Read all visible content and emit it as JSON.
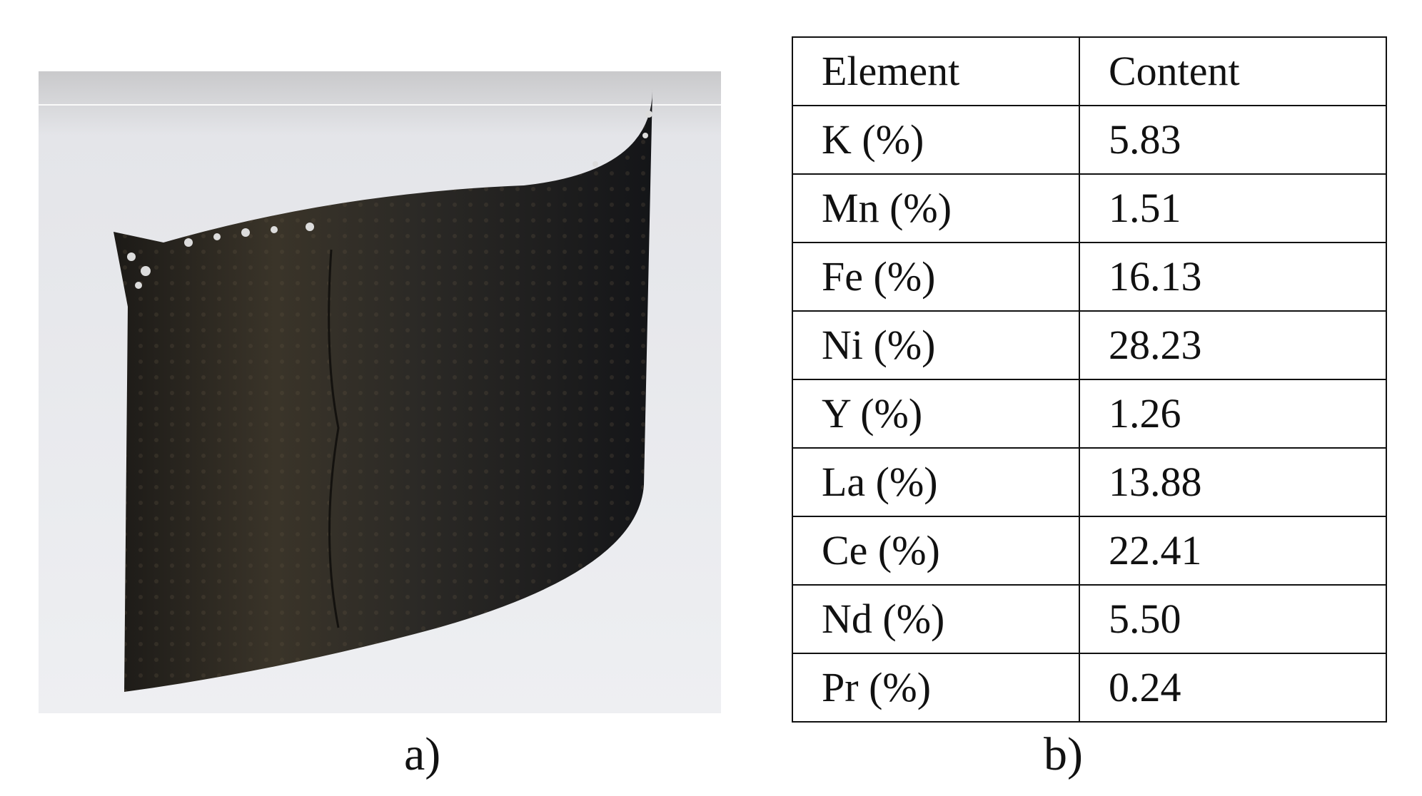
{
  "figure": {
    "panels": [
      {
        "label": "a)"
      },
      {
        "label": "b)"
      }
    ],
    "table": {
      "header": [
        "Element",
        "Content"
      ],
      "rows": [
        [
          "K (%)",
          "5.83"
        ],
        [
          "Mn (%)",
          "1.51"
        ],
        [
          "Fe (%)",
          "16.13"
        ],
        [
          "Ni (%)",
          "28.23"
        ],
        [
          "Y (%)",
          "1.26"
        ],
        [
          "La (%)",
          "13.88"
        ],
        [
          "Ce (%)",
          "22.41"
        ],
        [
          "Nd (%)",
          "5.50"
        ],
        [
          "Pr (%)",
          "0.24"
        ]
      ]
    }
  }
}
